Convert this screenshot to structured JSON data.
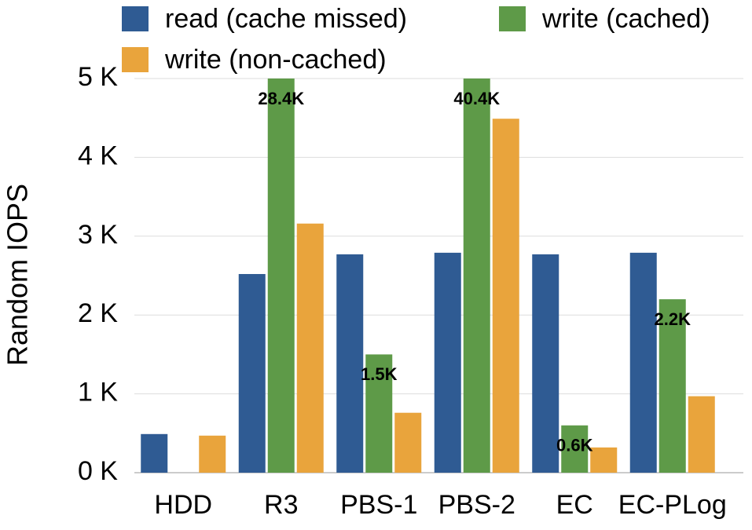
{
  "chart_data": {
    "type": "bar",
    "y_label": "Random IOPS",
    "categories": [
      "HDD",
      "R3",
      "PBS-1",
      "PBS-2",
      "EC",
      "EC-PLog"
    ],
    "series": [
      {
        "name": "read (cache missed)",
        "color": "#2f5b93",
        "values": [
          490,
          2520,
          2770,
          2790,
          2770,
          2790
        ]
      },
      {
        "name": "write (cached)",
        "color": "#5e9a48",
        "values": [
          null,
          28400,
          1500,
          40400,
          600,
          2200
        ],
        "value_labels": [
          null,
          "28.4K",
          "1.5K",
          "40.4K",
          "0.6K",
          "2.2K"
        ]
      },
      {
        "name": "write (non-cached)",
        "color": "#e9a43c",
        "values": [
          470,
          3160,
          760,
          4490,
          320,
          970
        ]
      }
    ],
    "ylim": [
      0,
      5000
    ],
    "yticks": [
      {
        "value": 0,
        "label": "0 K"
      },
      {
        "value": 1000,
        "label": "1 K"
      },
      {
        "value": 2000,
        "label": "2 K"
      },
      {
        "value": 3000,
        "label": "3 K"
      },
      {
        "value": 4000,
        "label": "4 K"
      },
      {
        "value": 5000,
        "label": "5 K"
      }
    ],
    "grid": true
  }
}
